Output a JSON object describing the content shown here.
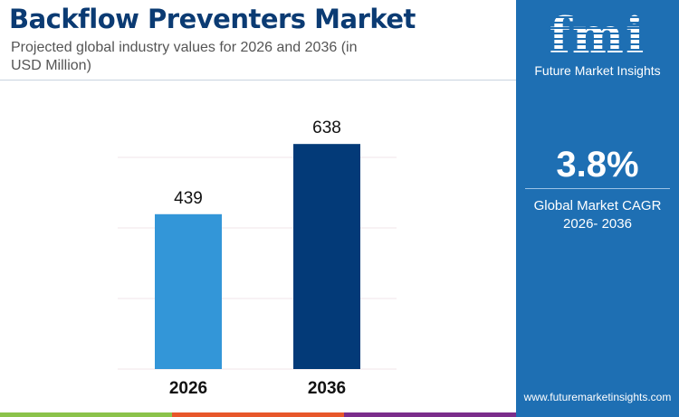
{
  "header": {
    "title": "Backflow Preventers Market",
    "subtitle": "Projected global industry values for 2026 and 2036 (in USD Million)"
  },
  "chart_data": {
    "type": "bar",
    "categories": [
      "2026",
      "2036"
    ],
    "values": [
      439,
      638
    ],
    "colors": [
      "#3396d8",
      "#033a78"
    ],
    "ylim": [
      0,
      700
    ],
    "gridlines": [
      0,
      200,
      400,
      600
    ],
    "grid": true,
    "title": "",
    "xlabel": "",
    "ylabel": ""
  },
  "panel": {
    "logo_text": "fmi",
    "brand": "Future Market Insights",
    "cagr": "3.8%",
    "cagr_label": "Global Market CAGR 2026- 2036",
    "website": "www.futuremarketinsights.com",
    "color": "#1e6fb3"
  },
  "footer_colors": [
    "#8bc34a",
    "#e8572a",
    "#7b2d8b"
  ]
}
